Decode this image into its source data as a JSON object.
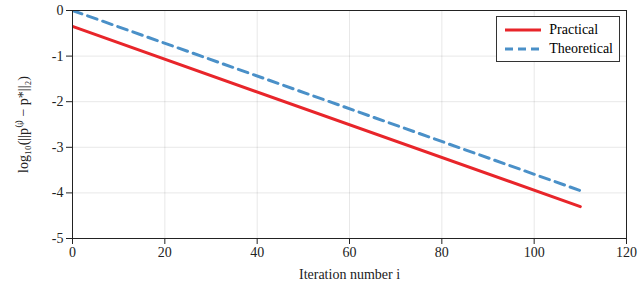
{
  "chart_data": {
    "type": "line",
    "x_label": "Iteration number i",
    "y_label": "log₁₀(||p⁽ⁱ⁾ − p*||₂)",
    "x": [
      0,
      110
    ],
    "series": [
      {
        "name": "Practical",
        "color": "#e8252a",
        "line_style": "solid",
        "values": [
          -0.35,
          -4.3
        ]
      },
      {
        "name": "Theoretical",
        "color": "#4a90c8",
        "line_style": "dashed",
        "values": [
          0,
          -3.95
        ]
      }
    ],
    "xlim": [
      0,
      120
    ],
    "xticks": [
      0,
      20,
      40,
      60,
      80,
      100,
      120
    ],
    "ylim": [
      -5,
      0
    ],
    "yticks": [
      -5,
      -4,
      -3,
      -2,
      -1,
      0
    ],
    "grid": true,
    "legend": "northeast"
  }
}
